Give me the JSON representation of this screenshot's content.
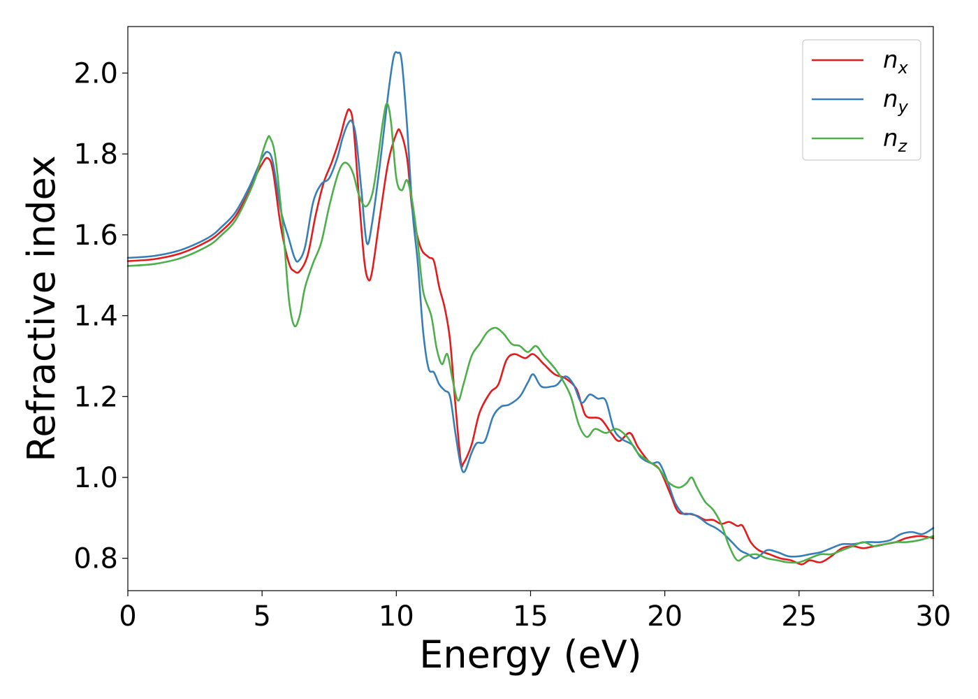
{
  "chart_data": {
    "type": "line",
    "xlabel": "Energy (eV)",
    "ylabel": "Refractive index",
    "xlim": [
      0,
      30
    ],
    "ylim": [
      0.72,
      2.115
    ],
    "xticks": [
      0,
      5,
      10,
      15,
      20,
      25,
      30
    ],
    "yticks": [
      0.8,
      1.0,
      1.2,
      1.4,
      1.6,
      1.8,
      2.0
    ],
    "grid": false,
    "legend_position": "top-right",
    "series": [
      {
        "name": "n",
        "subscript": "x",
        "color": "#e41a1c",
        "points": [
          [
            0,
            1.535
          ],
          [
            1,
            1.54
          ],
          [
            2,
            1.555
          ],
          [
            3,
            1.585
          ],
          [
            3.5,
            1.61
          ],
          [
            4,
            1.645
          ],
          [
            4.5,
            1.705
          ],
          [
            4.8,
            1.75
          ],
          [
            5.0,
            1.775
          ],
          [
            5.2,
            1.79
          ],
          [
            5.4,
            1.76
          ],
          [
            5.7,
            1.62
          ],
          [
            6.0,
            1.53
          ],
          [
            6.2,
            1.51
          ],
          [
            6.4,
            1.51
          ],
          [
            6.7,
            1.55
          ],
          [
            7.0,
            1.65
          ],
          [
            7.3,
            1.73
          ],
          [
            7.6,
            1.78
          ],
          [
            7.9,
            1.84
          ],
          [
            8.1,
            1.89
          ],
          [
            8.25,
            1.91
          ],
          [
            8.4,
            1.87
          ],
          [
            8.6,
            1.7
          ],
          [
            8.8,
            1.54
          ],
          [
            8.95,
            1.49
          ],
          [
            9.1,
            1.51
          ],
          [
            9.4,
            1.65
          ],
          [
            9.7,
            1.78
          ],
          [
            10.0,
            1.85
          ],
          [
            10.15,
            1.855
          ],
          [
            10.4,
            1.79
          ],
          [
            10.6,
            1.66
          ],
          [
            10.9,
            1.57
          ],
          [
            11.2,
            1.545
          ],
          [
            11.4,
            1.535
          ],
          [
            11.6,
            1.47
          ],
          [
            11.8,
            1.42
          ],
          [
            12.0,
            1.34
          ],
          [
            12.2,
            1.18
          ],
          [
            12.4,
            1.04
          ],
          [
            12.5,
            1.035
          ],
          [
            12.8,
            1.08
          ],
          [
            13.1,
            1.16
          ],
          [
            13.5,
            1.21
          ],
          [
            13.8,
            1.23
          ],
          [
            14.1,
            1.29
          ],
          [
            14.4,
            1.305
          ],
          [
            14.8,
            1.295
          ],
          [
            15.1,
            1.305
          ],
          [
            15.5,
            1.28
          ],
          [
            15.9,
            1.255
          ],
          [
            16.3,
            1.245
          ],
          [
            16.7,
            1.22
          ],
          [
            16.9,
            1.18
          ],
          [
            17.1,
            1.15
          ],
          [
            17.6,
            1.145
          ],
          [
            18.0,
            1.11
          ],
          [
            18.3,
            1.09
          ],
          [
            18.7,
            1.11
          ],
          [
            19.0,
            1.075
          ],
          [
            19.4,
            1.04
          ],
          [
            19.8,
            1.02
          ],
          [
            20.2,
            0.96
          ],
          [
            20.5,
            0.915
          ],
          [
            20.9,
            0.91
          ],
          [
            21.2,
            0.905
          ],
          [
            21.5,
            0.895
          ],
          [
            21.8,
            0.895
          ],
          [
            22.1,
            0.885
          ],
          [
            22.4,
            0.89
          ],
          [
            22.7,
            0.88
          ],
          [
            22.9,
            0.88
          ],
          [
            23.2,
            0.84
          ],
          [
            23.5,
            0.82
          ],
          [
            23.9,
            0.81
          ],
          [
            24.3,
            0.8
          ],
          [
            24.7,
            0.795
          ],
          [
            25.1,
            0.785
          ],
          [
            25.4,
            0.795
          ],
          [
            25.8,
            0.79
          ],
          [
            26.2,
            0.805
          ],
          [
            26.6,
            0.825
          ],
          [
            27.0,
            0.83
          ],
          [
            27.4,
            0.825
          ],
          [
            27.8,
            0.83
          ],
          [
            28.2,
            0.835
          ],
          [
            28.6,
            0.84
          ],
          [
            29.0,
            0.85
          ],
          [
            29.5,
            0.855
          ],
          [
            30.0,
            0.85
          ]
        ]
      },
      {
        "name": "n",
        "subscript": "y",
        "color": "#377eb8",
        "points": [
          [
            0,
            1.543
          ],
          [
            1,
            1.548
          ],
          [
            2,
            1.563
          ],
          [
            3,
            1.593
          ],
          [
            3.5,
            1.62
          ],
          [
            4,
            1.655
          ],
          [
            4.5,
            1.715
          ],
          [
            4.8,
            1.76
          ],
          [
            5.0,
            1.79
          ],
          [
            5.2,
            1.805
          ],
          [
            5.4,
            1.78
          ],
          [
            5.7,
            1.66
          ],
          [
            6.0,
            1.59
          ],
          [
            6.2,
            1.545
          ],
          [
            6.35,
            1.535
          ],
          [
            6.6,
            1.57
          ],
          [
            6.9,
            1.68
          ],
          [
            7.2,
            1.725
          ],
          [
            7.5,
            1.74
          ],
          [
            7.8,
            1.79
          ],
          [
            8.0,
            1.84
          ],
          [
            8.2,
            1.875
          ],
          [
            8.35,
            1.88
          ],
          [
            8.5,
            1.84
          ],
          [
            8.7,
            1.71
          ],
          [
            8.9,
            1.58
          ],
          [
            9.1,
            1.63
          ],
          [
            9.4,
            1.78
          ],
          [
            9.7,
            1.95
          ],
          [
            9.9,
            2.04
          ],
          [
            10.05,
            2.05
          ],
          [
            10.2,
            2.03
          ],
          [
            10.4,
            1.87
          ],
          [
            10.6,
            1.66
          ],
          [
            10.8,
            1.53
          ],
          [
            11.0,
            1.36
          ],
          [
            11.2,
            1.27
          ],
          [
            11.4,
            1.26
          ],
          [
            11.6,
            1.23
          ],
          [
            11.8,
            1.215
          ],
          [
            12.0,
            1.2
          ],
          [
            12.2,
            1.11
          ],
          [
            12.4,
            1.03
          ],
          [
            12.55,
            1.015
          ],
          [
            12.8,
            1.06
          ],
          [
            13.0,
            1.085
          ],
          [
            13.3,
            1.09
          ],
          [
            13.6,
            1.15
          ],
          [
            13.9,
            1.175
          ],
          [
            14.2,
            1.18
          ],
          [
            14.6,
            1.2
          ],
          [
            14.9,
            1.235
          ],
          [
            15.1,
            1.255
          ],
          [
            15.4,
            1.225
          ],
          [
            15.8,
            1.225
          ],
          [
            16.0,
            1.23
          ],
          [
            16.3,
            1.25
          ],
          [
            16.6,
            1.23
          ],
          [
            16.9,
            1.185
          ],
          [
            17.2,
            1.205
          ],
          [
            17.5,
            1.195
          ],
          [
            17.8,
            1.19
          ],
          [
            18.1,
            1.12
          ],
          [
            18.4,
            1.095
          ],
          [
            18.8,
            1.08
          ],
          [
            19.1,
            1.05
          ],
          [
            19.5,
            1.035
          ],
          [
            19.8,
            1.035
          ],
          [
            20.1,
            0.99
          ],
          [
            20.4,
            0.935
          ],
          [
            20.7,
            0.91
          ],
          [
            21.0,
            0.91
          ],
          [
            21.3,
            0.9
          ],
          [
            21.6,
            0.885
          ],
          [
            21.9,
            0.875
          ],
          [
            22.2,
            0.86
          ],
          [
            22.5,
            0.84
          ],
          [
            22.8,
            0.82
          ],
          [
            23.1,
            0.81
          ],
          [
            23.4,
            0.8
          ],
          [
            23.8,
            0.82
          ],
          [
            24.2,
            0.815
          ],
          [
            24.6,
            0.805
          ],
          [
            25.0,
            0.805
          ],
          [
            25.4,
            0.81
          ],
          [
            25.8,
            0.815
          ],
          [
            26.2,
            0.825
          ],
          [
            26.6,
            0.835
          ],
          [
            27.0,
            0.835
          ],
          [
            27.5,
            0.84
          ],
          [
            28.0,
            0.84
          ],
          [
            28.4,
            0.845
          ],
          [
            28.8,
            0.86
          ],
          [
            29.2,
            0.865
          ],
          [
            29.6,
            0.86
          ],
          [
            30.0,
            0.875
          ]
        ]
      },
      {
        "name": "n",
        "subscript": "z",
        "color": "#4daf4a",
        "points": [
          [
            0,
            1.523
          ],
          [
            1,
            1.528
          ],
          [
            2,
            1.543
          ],
          [
            3,
            1.573
          ],
          [
            3.5,
            1.6
          ],
          [
            4,
            1.635
          ],
          [
            4.5,
            1.7
          ],
          [
            4.8,
            1.75
          ],
          [
            5.0,
            1.8
          ],
          [
            5.2,
            1.838
          ],
          [
            5.3,
            1.84
          ],
          [
            5.5,
            1.79
          ],
          [
            5.8,
            1.6
          ],
          [
            6.0,
            1.44
          ],
          [
            6.2,
            1.375
          ],
          [
            6.4,
            1.4
          ],
          [
            6.6,
            1.47
          ],
          [
            6.9,
            1.53
          ],
          [
            7.2,
            1.58
          ],
          [
            7.5,
            1.67
          ],
          [
            7.8,
            1.745
          ],
          [
            8.0,
            1.775
          ],
          [
            8.2,
            1.775
          ],
          [
            8.4,
            1.75
          ],
          [
            8.6,
            1.7
          ],
          [
            8.85,
            1.67
          ],
          [
            9.1,
            1.7
          ],
          [
            9.3,
            1.78
          ],
          [
            9.5,
            1.88
          ],
          [
            9.65,
            1.925
          ],
          [
            9.8,
            1.88
          ],
          [
            10.0,
            1.74
          ],
          [
            10.2,
            1.71
          ],
          [
            10.4,
            1.735
          ],
          [
            10.6,
            1.68
          ],
          [
            10.8,
            1.58
          ],
          [
            11.0,
            1.46
          ],
          [
            11.3,
            1.4
          ],
          [
            11.5,
            1.32
          ],
          [
            11.7,
            1.28
          ],
          [
            11.9,
            1.305
          ],
          [
            12.1,
            1.24
          ],
          [
            12.3,
            1.19
          ],
          [
            12.5,
            1.23
          ],
          [
            12.8,
            1.3
          ],
          [
            13.1,
            1.33
          ],
          [
            13.4,
            1.36
          ],
          [
            13.7,
            1.37
          ],
          [
            14.0,
            1.355
          ],
          [
            14.3,
            1.33
          ],
          [
            14.6,
            1.325
          ],
          [
            14.9,
            1.31
          ],
          [
            15.2,
            1.325
          ],
          [
            15.5,
            1.3
          ],
          [
            15.9,
            1.27
          ],
          [
            16.2,
            1.24
          ],
          [
            16.5,
            1.2
          ],
          [
            16.8,
            1.13
          ],
          [
            17.1,
            1.1
          ],
          [
            17.4,
            1.12
          ],
          [
            17.8,
            1.11
          ],
          [
            18.2,
            1.12
          ],
          [
            18.6,
            1.1
          ],
          [
            19.0,
            1.06
          ],
          [
            19.4,
            1.04
          ],
          [
            19.8,
            1.02
          ],
          [
            20.1,
            0.99
          ],
          [
            20.5,
            0.975
          ],
          [
            20.8,
            0.985
          ],
          [
            21.0,
            1.0
          ],
          [
            21.2,
            0.975
          ],
          [
            21.5,
            0.94
          ],
          [
            21.8,
            0.92
          ],
          [
            22.1,
            0.885
          ],
          [
            22.4,
            0.83
          ],
          [
            22.7,
            0.795
          ],
          [
            23.0,
            0.805
          ],
          [
            23.4,
            0.81
          ],
          [
            23.8,
            0.8
          ],
          [
            24.2,
            0.795
          ],
          [
            24.6,
            0.79
          ],
          [
            25.0,
            0.79
          ],
          [
            25.4,
            0.8
          ],
          [
            25.8,
            0.81
          ],
          [
            26.2,
            0.81
          ],
          [
            26.6,
            0.82
          ],
          [
            27.0,
            0.83
          ],
          [
            27.4,
            0.84
          ],
          [
            27.8,
            0.83
          ],
          [
            28.2,
            0.835
          ],
          [
            28.6,
            0.84
          ],
          [
            29.0,
            0.84
          ],
          [
            29.5,
            0.845
          ],
          [
            30.0,
            0.855
          ]
        ]
      }
    ]
  }
}
